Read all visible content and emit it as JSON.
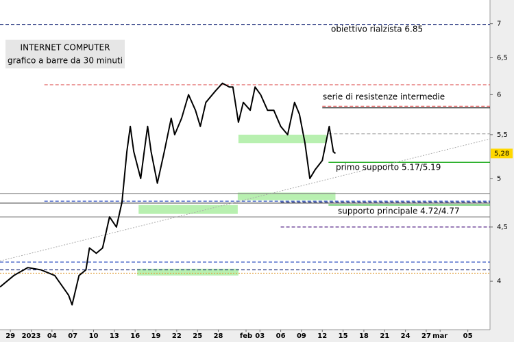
{
  "chart_data": {
    "type": "line",
    "title": "INTERNET COMPUTER",
    "subtitle": "grafico a barre da 30 minuti",
    "log_scale": true,
    "color": "#000000",
    "x": [
      -1.5,
      0.5,
      2.5,
      4.4,
      6.4,
      8.4,
      8.9,
      9.9,
      10.9,
      11.4,
      12.4,
      13.3,
      14.3,
      15.3,
      16.1,
      16.8,
      17.3,
      17.8,
      18.8,
      19.3,
      19.8,
      20.3,
      21.2,
      22.2,
      23.2,
      23.7,
      24.7,
      25.7,
      26.7,
      27.4,
      28.2,
      29.6,
      30.6,
      31.6,
      32.1,
      32.9,
      33.6,
      34.6,
      35.3,
      36.1,
      37.1,
      38.0,
      39.0,
      40.0,
      41.0,
      41.7,
      42.5,
      43.2,
      44.0,
      45.0,
      46.0,
      46.6,
      46.9
    ],
    "values": [
      3.95,
      4.05,
      4.12,
      4.1,
      4.05,
      3.88,
      3.8,
      4.05,
      4.1,
      4.3,
      4.25,
      4.3,
      4.6,
      4.5,
      4.75,
      5.3,
      5.6,
      5.3,
      5.0,
      5.3,
      5.6,
      5.3,
      4.95,
      5.3,
      5.7,
      5.5,
      5.7,
      6.0,
      5.8,
      5.6,
      5.9,
      6.05,
      6.15,
      6.1,
      6.1,
      5.65,
      5.9,
      5.8,
      6.1,
      6.0,
      5.8,
      5.8,
      5.6,
      5.5,
      5.9,
      5.75,
      5.4,
      5.0,
      5.1,
      5.2,
      5.6,
      5.3,
      5.28
    ],
    "xlim": [
      -1.5,
      69.2
    ],
    "ylim": [
      3.6,
      7.37
    ],
    "xticks": [
      {
        "value": 0,
        "label": "29"
      },
      {
        "value": 3,
        "label": "2023"
      },
      {
        "value": 6,
        "label": "04"
      },
      {
        "value": 9,
        "label": "07"
      },
      {
        "value": 12,
        "label": "10"
      },
      {
        "value": 15,
        "label": "13"
      },
      {
        "value": 18,
        "label": "16"
      },
      {
        "value": 21,
        "label": "19"
      },
      {
        "value": 24,
        "label": "22"
      },
      {
        "value": 27,
        "label": "25"
      },
      {
        "value": 30,
        "label": "28"
      },
      {
        "value": 34,
        "label": "feb"
      },
      {
        "value": 36,
        "label": "03"
      },
      {
        "value": 39,
        "label": "06"
      },
      {
        "value": 42,
        "label": "09"
      },
      {
        "value": 45,
        "label": "12"
      },
      {
        "value": 48,
        "label": "15"
      },
      {
        "value": 51,
        "label": "18"
      },
      {
        "value": 54,
        "label": "21"
      },
      {
        "value": 57,
        "label": "24"
      },
      {
        "value": 60,
        "label": "27"
      },
      {
        "value": 62,
        "label": "mar"
      },
      {
        "value": 66,
        "label": "05"
      }
    ],
    "yticks": [
      4,
      {
        "value": 4.5,
        "label": "4,5"
      },
      5,
      {
        "value": 5.5,
        "label": "5,5"
      },
      6,
      {
        "value": 6.5,
        "label": "6,5"
      },
      7
    ],
    "last_price": {
      "value": 5.28,
      "label": "5,28"
    },
    "levels": [
      {
        "value": 6.99,
        "color": "#1f2f7a",
        "dash": "dashed",
        "x_start": -1.5
      },
      {
        "value": 6.13,
        "color": "#e06060",
        "dash": "dashed",
        "x_start": 4.9
      },
      {
        "value": 5.85,
        "color": "#e06060",
        "dash": "dashed",
        "x_start": 45.0
      },
      {
        "value": 5.83,
        "color": "#000000",
        "dash": "solid",
        "x_start": 45.0
      },
      {
        "value": 5.51,
        "color": "#999999",
        "dash": "dashed",
        "x_start": 45.9
      },
      {
        "value": 5.18,
        "color": "#00a000",
        "dash": "solid",
        "x_start": 45.9
      },
      {
        "value": 4.84,
        "color": "#888888",
        "dash": "solid",
        "x_start": -1.5
      },
      {
        "value": 4.76,
        "color": "#3050c0",
        "dash": "dashed",
        "x_start": 4.9
      },
      {
        "value": 4.75,
        "color": "#1f2f7a",
        "dash": "dashed",
        "x_start": 39.0
      },
      {
        "value": 4.74,
        "color": "#555555",
        "dash": "solid",
        "x_start": -1.5
      },
      {
        "value": 4.72,
        "color": "#00a000",
        "dash": "solid",
        "x_start": 45.9
      },
      {
        "value": 4.6,
        "color": "#888888",
        "dash": "solid",
        "x_start": -1.5
      },
      {
        "value": 4.5,
        "color": "#5a2a8a",
        "dash": "dashed",
        "x_start": 39.0
      },
      {
        "value": 4.17,
        "color": "#3050c0",
        "dash": "dashed",
        "x_start": -1.5
      },
      {
        "value": 4.1,
        "color": "#1f2f7a",
        "dash": "dashed",
        "x_start": -1.5
      },
      {
        "value": 4.07,
        "color": "#e0a040",
        "dash": "dotted",
        "x_start": -1.5
      }
    ],
    "trendline": {
      "x": [
        -1.5,
        69.2
      ],
      "values": [
        4.18,
        5.45
      ],
      "color": "#aaaaaa"
    },
    "zones": [
      {
        "x_start": 32.9,
        "x_end": 45.6,
        "low": 5.4,
        "high": 5.5,
        "color": "#b8f0b0"
      },
      {
        "x_start": 32.8,
        "x_end": 46.9,
        "low": 4.77,
        "high": 4.85,
        "color": "#b8f0b0"
      },
      {
        "x_start": 18.5,
        "x_end": 32.8,
        "low": 4.63,
        "high": 4.72,
        "color": "#b8f0b0"
      },
      {
        "x_start": 18.3,
        "x_end": 32.9,
        "low": 4.05,
        "high": 4.11,
        "color": "#b8f0b0"
      }
    ],
    "annotations": [
      "obiettivo rialzista 6.85",
      "serie di resistenze intermedie",
      "primo supporto 5.17/5.19",
      "supporto principale 4.72/4.77"
    ]
  }
}
